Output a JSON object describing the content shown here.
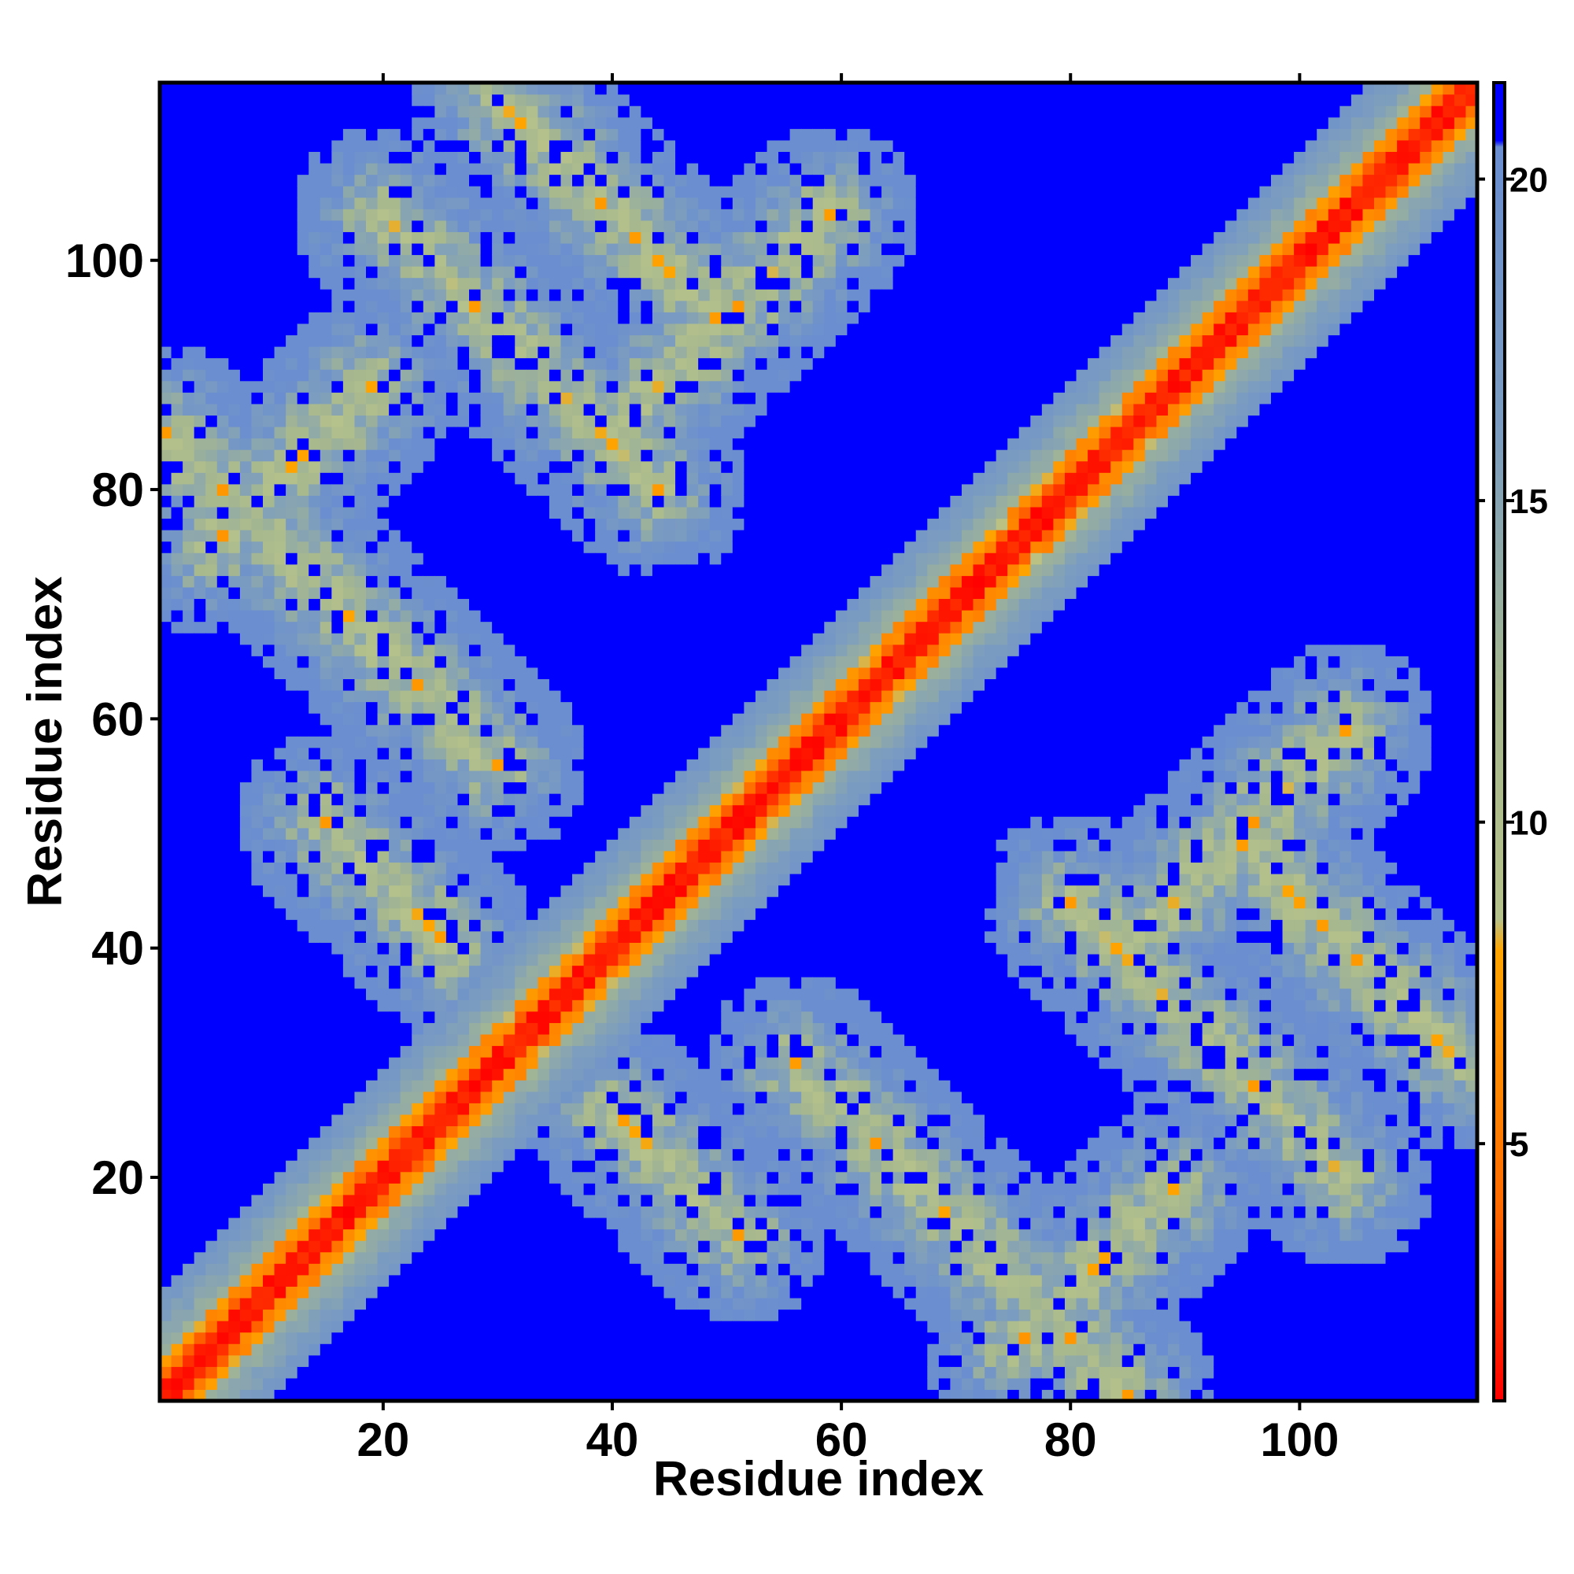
{
  "chart_data": {
    "type": "heatmap",
    "title": "",
    "xlabel": "Residue index",
    "ylabel": "Residue index",
    "n_residues": 115,
    "xlim": [
      1,
      115
    ],
    "ylim": [
      1,
      115
    ],
    "x_ticks": [
      20,
      40,
      60,
      80,
      100
    ],
    "y_ticks": [
      20,
      40,
      60,
      80,
      100
    ],
    "colorbar": {
      "range": [
        1,
        21.5
      ],
      "ticks": [
        5,
        10,
        15,
        20
      ],
      "stops": [
        {
          "value": 1,
          "color": "#ff0000"
        },
        {
          "value": 4,
          "color": "#ff6a00"
        },
        {
          "value": 8,
          "color": "#ffa500"
        },
        {
          "value": 8.5,
          "color": "#b6c28c"
        },
        {
          "value": 12,
          "color": "#a7b88e"
        },
        {
          "value": 16,
          "color": "#7c9dbf"
        },
        {
          "value": 20.5,
          "color": "#6a8ed0"
        },
        {
          "value": 20.6,
          "color": "#0000ff"
        },
        {
          "value": 21.5,
          "color": "#0000ff"
        }
      ]
    },
    "structure": {
      "description_values_in_angstrom_like_units": true,
      "diagonal": {
        "width_residues": 3,
        "value_center": 1,
        "value_edge": 6
      },
      "diagonal_halo_width": 9,
      "contact_bands": [
        {
          "i_start": 1,
          "j_start": 56,
          "length": 30,
          "orientation": "antiparallel"
        },
        {
          "i_start": 20,
          "j_start": 80,
          "length": 25,
          "orientation": "antiparallel"
        },
        {
          "i_start": 30,
          "j_start": 95,
          "length": 20,
          "orientation": "antiparallel"
        },
        {
          "i_start": 5,
          "j_start": 75,
          "length": 15,
          "orientation": "parallel"
        },
        {
          "i_start": 40,
          "j_start": 85,
          "length": 20,
          "orientation": "parallel"
        },
        {
          "i_start": 15,
          "j_start": 40,
          "length": 12,
          "orientation": "antiparallel"
        }
      ]
    }
  }
}
